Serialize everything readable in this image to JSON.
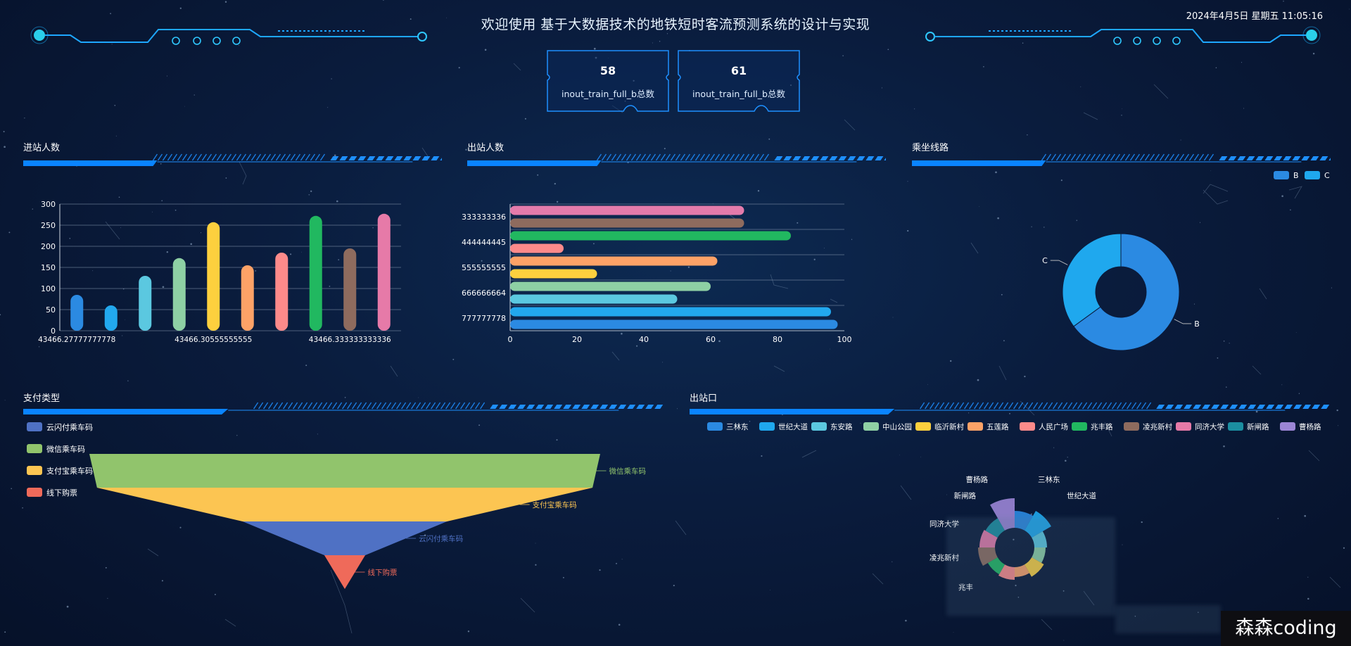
{
  "header": {
    "title": "欢迎使用 基于大数据技术的地铁短时客流预测系统的设计与实现",
    "datetime": "2024年4月5日 星期五 11:05:16"
  },
  "kpis": [
    {
      "value": "58",
      "label": "inout_train_full_b总数"
    },
    {
      "value": "61",
      "label": "inout_train_full_b总数"
    }
  ],
  "panels": {
    "inbound": "进站人数",
    "outbound": "出站人数",
    "line": "乘坐线路",
    "payment": "支付类型",
    "exit": "出站口"
  },
  "colors": {
    "accent": "#1e90ff",
    "panel_bar": "#0a84ff"
  },
  "inbound_chart": {
    "type": "bar",
    "ylim": [
      0,
      300
    ],
    "yticks": [
      "0",
      "50",
      "100",
      "150",
      "200",
      "250",
      "300"
    ],
    "xtick_labels": [
      "43466.27777777778",
      "43466.30555555555",
      "43466.333333333336"
    ],
    "values": [
      85,
      60,
      130,
      172,
      257,
      155,
      185,
      272,
      195,
      277
    ],
    "colors": [
      "#2b8ae2",
      "#22a8ee",
      "#5bc8e0",
      "#8ed0a4",
      "#fdd03e",
      "#fda267",
      "#fd8a8a",
      "#21b860",
      "#8e6b5e",
      "#e67aa8"
    ]
  },
  "outbound_chart": {
    "type": "bar",
    "orientation": "horizontal",
    "xlim": [
      0,
      100
    ],
    "xticks": [
      "0",
      "20",
      "40",
      "60",
      "80",
      "100"
    ],
    "ytick_labels": [
      "333333336",
      "444444445",
      "555555555",
      "666666664",
      "777777778"
    ],
    "values": [
      70,
      70,
      84,
      16,
      62,
      26,
      60,
      50,
      96,
      98
    ],
    "colors": [
      "#e47bab",
      "#8e6b5e",
      "#21b860",
      "#fd8a8a",
      "#fda267",
      "#fdd03e",
      "#8ed0a4",
      "#5bc8e0",
      "#22a8ee",
      "#2b8ae2"
    ]
  },
  "line_chart": {
    "type": "pie",
    "legend": [
      "B",
      "C"
    ],
    "legend_colors": [
      "#2b8ae2",
      "#1fa8ee"
    ],
    "slices": [
      {
        "name": "B",
        "value": 65,
        "color": "#2b8ae2"
      },
      {
        "name": "C",
        "value": 35,
        "color": "#1fa8ee"
      }
    ]
  },
  "payment_chart": {
    "type": "funnel",
    "legend": [
      {
        "name": "云闪付乘车码",
        "color": "#4f71c4"
      },
      {
        "name": "微信乘车码",
        "color": "#91c46c"
      },
      {
        "name": "支付宝乘车码",
        "color": "#fcc552"
      },
      {
        "name": "线下购票",
        "color": "#ef6a5a"
      }
    ],
    "levels": [
      {
        "name": "微信乘车码",
        "value": 100,
        "color": "#91c46c"
      },
      {
        "name": "支付宝乘车码",
        "value": 97,
        "color": "#fcc552"
      },
      {
        "name": "云闪付乘车码",
        "value": 40,
        "color": "#4f71c4"
      },
      {
        "name": "线下购票",
        "value": 8,
        "color": "#ef6a5a"
      }
    ]
  },
  "exit_chart": {
    "type": "pie",
    "legend": [
      {
        "name": "三林东",
        "color": "#2b8ae2"
      },
      {
        "name": "世纪大道",
        "color": "#1fa8ee"
      },
      {
        "name": "东安路",
        "color": "#5bc8e0"
      },
      {
        "name": "中山公园",
        "color": "#8ed0a4"
      },
      {
        "name": "临沂新村",
        "color": "#fdd03e"
      },
      {
        "name": "五莲路",
        "color": "#fda267"
      },
      {
        "name": "人民广场",
        "color": "#fd8a8a"
      },
      {
        "name": "兆丰路",
        "color": "#21b860"
      },
      {
        "name": "凌兆新村",
        "color": "#8e6b5e"
      },
      {
        "name": "同济大学",
        "color": "#e67aa8"
      },
      {
        "name": "新闸路",
        "color": "#1b8ea0"
      },
      {
        "name": "曹杨路",
        "color": "#9b85d6"
      }
    ],
    "visible_labels": [
      "曹杨路",
      "三林东",
      "世纪大道",
      "新闸路",
      "同济大学",
      "凌兆新村",
      "兆丰"
    ]
  },
  "watermark": "森森coding"
}
